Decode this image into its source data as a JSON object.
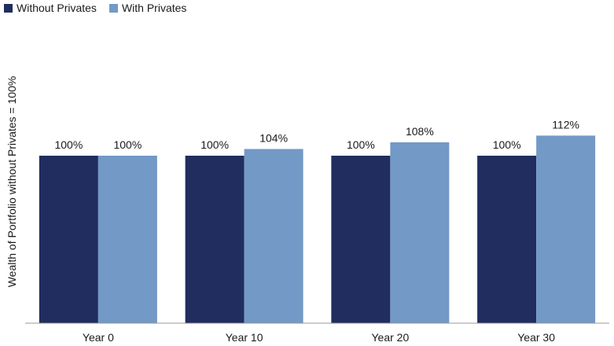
{
  "chart_data": {
    "type": "bar",
    "categories": [
      "Year 0",
      "Year 10",
      "Year 20",
      "Year 30"
    ],
    "series": [
      {
        "name": "Without Privates",
        "values": [
          100,
          100,
          100,
          100
        ],
        "labels": [
          "100%",
          "100%",
          "100%",
          "100%"
        ],
        "color": "#202d5e"
      },
      {
        "name": "With Privates",
        "values": [
          100,
          104,
          108,
          112
        ],
        "labels": [
          "100%",
          "104%",
          "108%",
          "112%"
        ],
        "color": "#7399c6"
      }
    ],
    "title": "",
    "xlabel": "",
    "ylabel": "Wealth of Portfolio without Privates = 100%",
    "ylim": [
      0,
      112
    ],
    "grid": false,
    "legend_position": "top-left"
  }
}
